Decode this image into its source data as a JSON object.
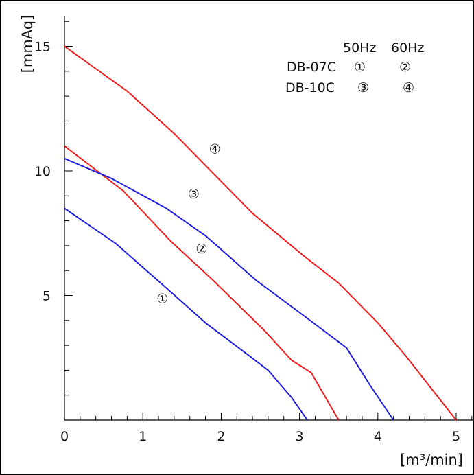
{
  "chart_data": {
    "type": "line",
    "xlabel": "[m³/min]",
    "ylabel": "[mmAq]",
    "xlim": [
      0,
      5.2
    ],
    "ylim": [
      0,
      16.2
    ],
    "x_ticks": [
      "0",
      "1",
      "2",
      "3",
      "4",
      "5"
    ],
    "y_ticks": [
      "5",
      "10",
      "15"
    ],
    "legend": {
      "header": [
        "50Hz",
        "60Hz"
      ],
      "rows": [
        {
          "model": "DB-07C",
          "hz50": "①",
          "hz60": "②"
        },
        {
          "model": "DB-10C",
          "hz50": "③",
          "hz60": "④"
        }
      ]
    },
    "series": [
      {
        "name": "①",
        "color": "#1f1fdd",
        "points": [
          [
            0,
            8.5
          ],
          [
            0.65,
            7.1
          ],
          [
            1.3,
            5.3
          ],
          [
            1.8,
            3.9
          ],
          [
            2.35,
            2.6
          ],
          [
            2.6,
            2.0
          ],
          [
            2.9,
            0.9
          ],
          [
            3.1,
            0
          ]
        ]
      },
      {
        "name": "②",
        "color": "#ee1c1c",
        "points": [
          [
            0,
            11.0
          ],
          [
            0.75,
            9.2
          ],
          [
            1.35,
            7.2
          ],
          [
            1.9,
            5.6
          ],
          [
            2.55,
            3.6
          ],
          [
            2.9,
            2.4
          ],
          [
            3.15,
            1.9
          ],
          [
            3.5,
            0
          ]
        ]
      },
      {
        "name": "③",
        "color": "#1f1fdd",
        "points": [
          [
            0,
            10.5
          ],
          [
            0.6,
            9.7
          ],
          [
            1.3,
            8.5
          ],
          [
            1.8,
            7.4
          ],
          [
            2.45,
            5.6
          ],
          [
            3.05,
            4.2
          ],
          [
            3.6,
            2.9
          ],
          [
            3.9,
            1.4
          ],
          [
            4.2,
            0
          ]
        ]
      },
      {
        "name": "④",
        "color": "#ee1c1c",
        "points": [
          [
            0,
            15.0
          ],
          [
            0.8,
            13.2
          ],
          [
            1.4,
            11.5
          ],
          [
            2.4,
            8.3
          ],
          [
            3.05,
            6.6
          ],
          [
            3.5,
            5.5
          ],
          [
            4.0,
            3.9
          ],
          [
            4.35,
            2.6
          ],
          [
            5.0,
            0
          ]
        ]
      }
    ],
    "curve_labels": [
      {
        "text": "①",
        "x": 1.25,
        "y": 4.7
      },
      {
        "text": "②",
        "x": 1.75,
        "y": 6.7
      },
      {
        "text": "③",
        "x": 1.65,
        "y": 8.9
      },
      {
        "text": "④",
        "x": 1.92,
        "y": 10.7
      }
    ],
    "grid": false
  }
}
